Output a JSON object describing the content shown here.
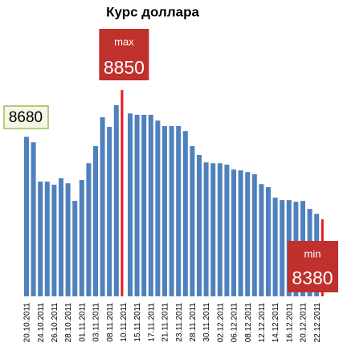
{
  "chart_data": {
    "type": "bar",
    "title": "Курс доллара",
    "categories": [
      "20.10.2011",
      null,
      "24.10.2011",
      null,
      "26.10.2011",
      null,
      "28.10.2011",
      null,
      "01.11.2011",
      null,
      "03.11.2011",
      null,
      "08.11.2011",
      null,
      "10.11.2011",
      null,
      "15.11.2011",
      null,
      "17.11.2011",
      null,
      "21.11.2011",
      null,
      "23.11.2011",
      null,
      "28.11.2011",
      null,
      "30.11.2011",
      null,
      "02.12.2011",
      null,
      "06.12.2011",
      null,
      "08.12.2011",
      null,
      "12.12.2011",
      null,
      "14.12.2011",
      null,
      "16.12.2011",
      null,
      "20.12.2011",
      null,
      "22.12.2011",
      null
    ],
    "values": [
      8680,
      8660,
      8517,
      8517,
      8506,
      8529,
      8511,
      8447,
      8523,
      8584,
      8646,
      8751,
      8716,
      8795,
      8850,
      8765,
      8760,
      8760,
      8760,
      8739,
      8719,
      8719,
      8719,
      8701,
      8646,
      8614,
      8587,
      8584,
      8584,
      8579,
      8561,
      8558,
      8552,
      8544,
      8508,
      8497,
      8459,
      8450,
      8450,
      8444,
      8447,
      8418,
      8400,
      8380
    ],
    "color": "#4f81bd",
    "highlight_color": "#e8191c",
    "annotations": {
      "max": "max",
      "min": "min"
    },
    "ylim": [
      8100,
      8900
    ]
  }
}
